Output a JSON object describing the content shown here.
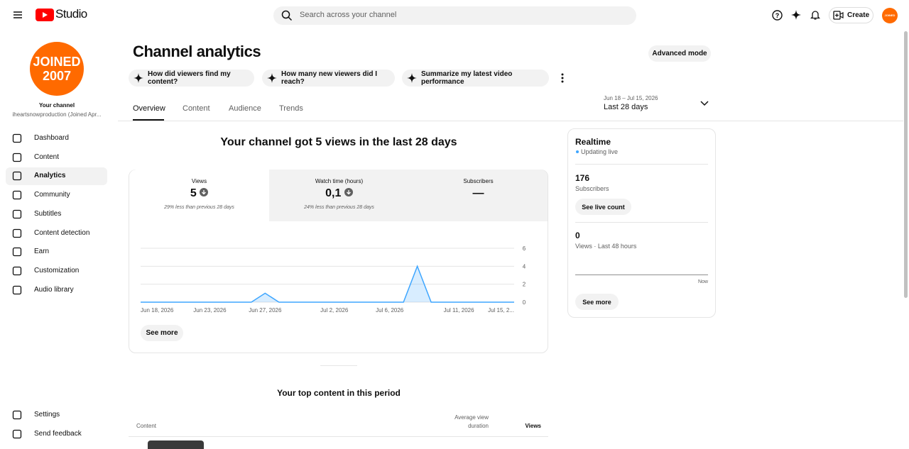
{
  "header": {
    "logo": "Studio",
    "search_placeholder": "Search across your channel",
    "create": "Create",
    "avatar_text": "JOINED 2007"
  },
  "sidebar": {
    "avatar_lines": [
      "JOINED",
      "2007"
    ],
    "channel_label": "Your channel",
    "channel_handle": "iheartsnowproduction (Joined Apr...",
    "nav": [
      "Dashboard",
      "Content",
      "Analytics",
      "Community",
      "Subtitles",
      "Content detection",
      "Earn",
      "Customization",
      "Audio library"
    ],
    "footer": [
      "Settings",
      "Send feedback"
    ]
  },
  "main": {
    "title": "Channel analytics",
    "advanced_mode": "Advanced mode",
    "chips": [
      "How did viewers find my content?",
      "How many new viewers did I reach?",
      "Summarize my latest video performance"
    ],
    "tabs": [
      "Overview",
      "Content",
      "Audience",
      "Trends"
    ],
    "date_range": "Jun 18 – Jul 15, 2026",
    "date_preset": "Last 28 days",
    "headline": "Your channel got 5 views in the last 28 days",
    "metrics": [
      {
        "label": "Views",
        "value": "5",
        "note": "29% less than previous 28 days"
      },
      {
        "label": "Watch time (hours)",
        "value": "0,1",
        "note": "24% less than previous 28 days"
      },
      {
        "label": "Subscribers",
        "value": "—"
      }
    ],
    "see_more": "See more",
    "top_content_title": "Your top content in this period",
    "table_headers": [
      "Content",
      "Average view",
      "duration",
      "Views"
    ]
  },
  "realtime": {
    "title": "Realtime",
    "status": "Updating live",
    "subscribers": "176",
    "subscribers_label": "Subscribers",
    "see_live_count": "See live count",
    "views": "0",
    "views_label": "Views · Last 48 hours",
    "now": "Now",
    "see_more": "See more"
  },
  "chart_data": {
    "type": "area",
    "color": "#3ea6ff",
    "grid": true,
    "categories": [
      "Jun 18, 2026",
      null,
      null,
      null,
      null,
      "Jun 23, 2026",
      null,
      null,
      null,
      "Jun 27, 2026",
      null,
      null,
      null,
      null,
      "Jul 2, 2026",
      null,
      null,
      null,
      "Jul 6, 2026",
      null,
      null,
      null,
      null,
      "Jul 11, 2026",
      null,
      null,
      null,
      "Jul 15, 2..."
    ],
    "values": [
      0,
      0,
      0,
      0,
      0,
      0,
      0,
      0,
      0,
      1,
      0,
      0,
      0,
      0,
      0,
      0,
      0,
      0,
      0,
      0,
      4,
      0,
      0,
      0,
      0,
      0,
      0,
      0
    ],
    "ylim": [
      0,
      6
    ],
    "yticks": [
      0,
      2,
      4,
      6
    ]
  }
}
